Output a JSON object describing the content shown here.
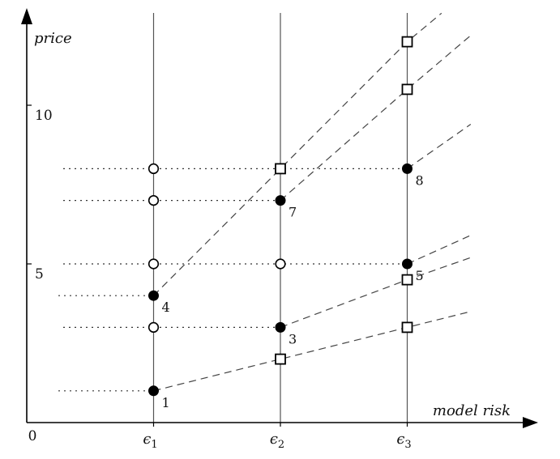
{
  "chart_data": {
    "type": "scatter",
    "title": "",
    "xlabel": "model risk",
    "ylabel": "price",
    "x_origin_label": "0",
    "x_ticks": [
      {
        "label": "ϵ1",
        "base": "ϵ",
        "sub": "1"
      },
      {
        "label": "ϵ2",
        "base": "ϵ",
        "sub": "2"
      },
      {
        "label": "ϵ3",
        "base": "ϵ",
        "sub": "3"
      }
    ],
    "y_ticks": [
      {
        "value": 5,
        "label": "5"
      },
      {
        "value": 10,
        "label": "10"
      }
    ],
    "ylim": [
      0,
      12.9
    ],
    "grid": false,
    "markers": {
      "filled": [
        {
          "x": 1,
          "y": 1.0,
          "label": "1"
        },
        {
          "x": 2,
          "y": 3.0,
          "label": "3"
        },
        {
          "x": 1,
          "y": 4.0,
          "label": "4"
        },
        {
          "x": 3,
          "y": 5.0,
          "label": "5"
        },
        {
          "x": 2,
          "y": 7.0,
          "label": "7"
        },
        {
          "x": 3,
          "y": 8.0,
          "label": "8"
        }
      ],
      "open_circle": [
        {
          "x": 1,
          "y": 3.0
        },
        {
          "x": 1,
          "y": 5.0
        },
        {
          "x": 1,
          "y": 7.0
        },
        {
          "x": 1,
          "y": 8.0
        },
        {
          "x": 2,
          "y": 5.0
        }
      ],
      "open_square": [
        {
          "x": 2,
          "y": 2.0
        },
        {
          "x": 2,
          "y": 8.0
        },
        {
          "x": 3,
          "y": 3.0
        },
        {
          "x": 3,
          "y": 4.5
        },
        {
          "x": 3,
          "y": 10.5
        },
        {
          "x": 3,
          "y": 12.0
        }
      ]
    },
    "dashed_lines": [
      [
        {
          "x": 1,
          "y": 1.0
        },
        {
          "x": 2,
          "y": 2.0
        },
        {
          "x": 3,
          "y": 3.0
        },
        {
          "x": 3.5,
          "y": 3.5
        }
      ],
      [
        {
          "x": 2,
          "y": 3.0
        },
        {
          "x": 3,
          "y": 4.5
        },
        {
          "x": 3.5,
          "y": 5.2
        }
      ],
      [
        {
          "x": 3,
          "y": 5.0
        },
        {
          "x": 3.5,
          "y": 5.9
        }
      ],
      [
        {
          "x": 1,
          "y": 4.0
        },
        {
          "x": 2,
          "y": 8.0
        },
        {
          "x": 3,
          "y": 12.0
        },
        {
          "x": 3.27,
          "y": 12.9
        }
      ],
      [
        {
          "x": 2,
          "y": 7.0
        },
        {
          "x": 3,
          "y": 10.5
        },
        {
          "x": 3.5,
          "y": 12.2
        }
      ],
      [
        {
          "x": 3,
          "y": 8.0
        },
        {
          "x": 3.5,
          "y": 9.4
        }
      ]
    ],
    "dotted_levels": [
      {
        "y": 1.0,
        "x_end": 1
      },
      {
        "y": 3.0,
        "x_end": 2
      },
      {
        "y": 4.0,
        "x_end": 1
      },
      {
        "y": 5.0,
        "x_end": 3
      },
      {
        "y": 7.0,
        "x_end": 2
      },
      {
        "y": 8.0,
        "x_end": 3
      }
    ]
  }
}
